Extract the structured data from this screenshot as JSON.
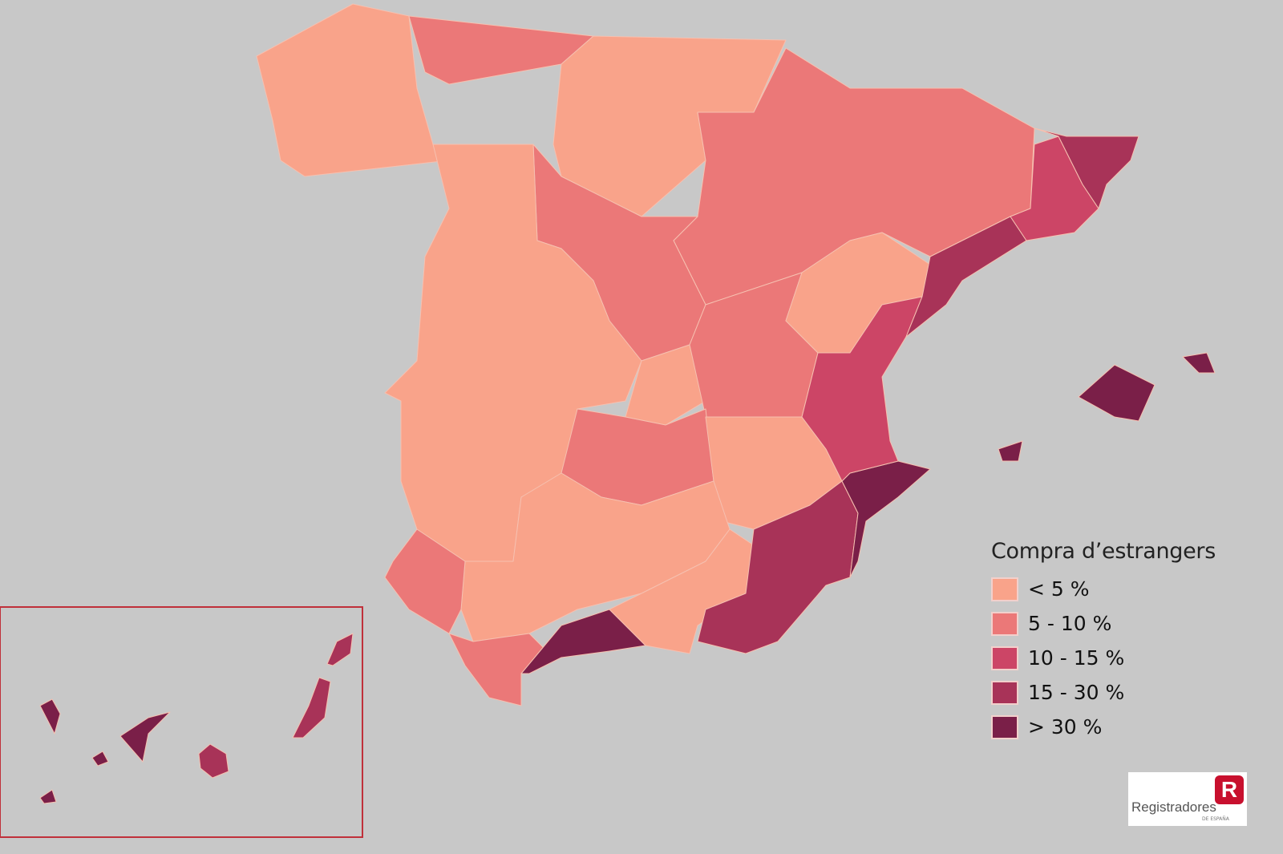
{
  "legend": {
    "title": "Compra d’estrangers",
    "classes": [
      {
        "label": "< 5 %",
        "color": "#F9A38A"
      },
      {
        "label": "5 - 10 %",
        "color": "#EB7878"
      },
      {
        "label": "10 - 15 %",
        "color": "#CC4566"
      },
      {
        "label": "15 - 30 %",
        "color": "#A83358"
      },
      {
        "label": "> 30 %",
        "color": "#7A1F48"
      }
    ]
  },
  "logo": {
    "name": "Registradores",
    "subtitle": "DE ESPAÑA",
    "mark": "R"
  },
  "colors": {
    "background": "#C8C8C8",
    "inset_border": "#C0303A"
  }
}
